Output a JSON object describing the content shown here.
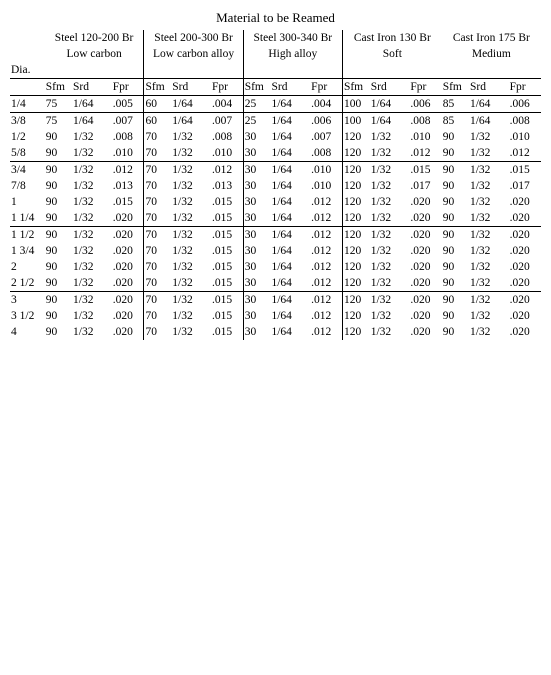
{
  "title": "Material to be Reamed",
  "groups": [
    {
      "l1": "Steel 120-200 Br",
      "l2": "Low carbon"
    },
    {
      "l1": "Steel 200-300 Br",
      "l2": "Low carbon alloy"
    },
    {
      "l1": "Steel 300-340 Br",
      "l2": "High alloy"
    },
    {
      "l1": "Cast Iron 130 Br",
      "l2": "Soft"
    },
    {
      "l1": "Cast Iron 175 Br",
      "l2": "Medium"
    }
  ],
  "colHeaders": {
    "dia": "Dia.",
    "sfm": "Sfm",
    "srd": "Srd",
    "fpr": "Fpr"
  },
  "rows": [
    {
      "dia": "1/4",
      "g1": {
        "sfm": "75",
        "srd": "1/64",
        "fpr": ".005"
      },
      "g2": {
        "sfm": "60",
        "srd": "1/64",
        "fpr": ".004"
      },
      "g3": {
        "sfm": "25",
        "srd": "1/64",
        "fpr": ".004"
      },
      "g4": {
        "sfm": "100",
        "srd": "1/64",
        "fpr": ".006"
      },
      "g5": {
        "sfm": "85",
        "srd": "1/64",
        "fpr": ".006"
      },
      "sep": true
    },
    {
      "dia": "3/8",
      "g1": {
        "sfm": "75",
        "srd": "1/64",
        "fpr": ".007"
      },
      "g2": {
        "sfm": "60",
        "srd": "1/64",
        "fpr": ".007"
      },
      "g3": {
        "sfm": "25",
        "srd": "1/64",
        "fpr": ".006"
      },
      "g4": {
        "sfm": "100",
        "srd": "1/64",
        "fpr": ".008"
      },
      "g5": {
        "sfm": "85",
        "srd": "1/64",
        "fpr": ".008"
      },
      "sep": false
    },
    {
      "dia": "1/2",
      "g1": {
        "sfm": "90",
        "srd": "1/32",
        "fpr": ".008"
      },
      "g2": {
        "sfm": "70",
        "srd": "1/32",
        "fpr": ".008"
      },
      "g3": {
        "sfm": "30",
        "srd": "1/64",
        "fpr": ".007"
      },
      "g4": {
        "sfm": "120",
        "srd": "1/32",
        "fpr": ".010"
      },
      "g5": {
        "sfm": "90",
        "srd": "1/32",
        "fpr": ".010"
      },
      "sep": false
    },
    {
      "dia": "5/8",
      "g1": {
        "sfm": "90",
        "srd": "1/32",
        "fpr": ".010"
      },
      "g2": {
        "sfm": "70",
        "srd": "1/32",
        "fpr": ".010"
      },
      "g3": {
        "sfm": "30",
        "srd": "1/64",
        "fpr": ".008"
      },
      "g4": {
        "sfm": "120",
        "srd": "1/32",
        "fpr": ".012"
      },
      "g5": {
        "sfm": "90",
        "srd": "1/32",
        "fpr": ".012"
      },
      "sep": true
    },
    {
      "dia": "3/4",
      "g1": {
        "sfm": "90",
        "srd": "1/32",
        "fpr": ".012"
      },
      "g2": {
        "sfm": "70",
        "srd": "1/32",
        "fpr": ".012"
      },
      "g3": {
        "sfm": "30",
        "srd": "1/64",
        "fpr": ".010"
      },
      "g4": {
        "sfm": "120",
        "srd": "1/32",
        "fpr": ".015"
      },
      "g5": {
        "sfm": "90",
        "srd": "1/32",
        "fpr": ".015"
      },
      "sep": false
    },
    {
      "dia": "7/8",
      "g1": {
        "sfm": "90",
        "srd": "1/32",
        "fpr": ".013"
      },
      "g2": {
        "sfm": "70",
        "srd": "1/32",
        "fpr": ".013"
      },
      "g3": {
        "sfm": "30",
        "srd": "1/64",
        "fpr": ".010"
      },
      "g4": {
        "sfm": "120",
        "srd": "1/32",
        "fpr": ".017"
      },
      "g5": {
        "sfm": "90",
        "srd": "1/32",
        "fpr": ".017"
      },
      "sep": false
    },
    {
      "dia": "1",
      "g1": {
        "sfm": "90",
        "srd": "1/32",
        "fpr": ".015"
      },
      "g2": {
        "sfm": "70",
        "srd": "1/32",
        "fpr": ".015"
      },
      "g3": {
        "sfm": "30",
        "srd": "1/64",
        "fpr": ".012"
      },
      "g4": {
        "sfm": "120",
        "srd": "1/32",
        "fpr": ".020"
      },
      "g5": {
        "sfm": "90",
        "srd": "1/32",
        "fpr": ".020"
      },
      "sep": false
    },
    {
      "dia": "1 1/4",
      "g1": {
        "sfm": "90",
        "srd": "1/32",
        "fpr": ".020"
      },
      "g2": {
        "sfm": "70",
        "srd": "1/32",
        "fpr": ".015"
      },
      "g3": {
        "sfm": "30",
        "srd": "1/64",
        "fpr": ".012"
      },
      "g4": {
        "sfm": "120",
        "srd": "1/32",
        "fpr": ".020"
      },
      "g5": {
        "sfm": "90",
        "srd": "1/32",
        "fpr": ".020"
      },
      "sep": true
    },
    {
      "dia": "1 1/2",
      "g1": {
        "sfm": "90",
        "srd": "1/32",
        "fpr": ".020"
      },
      "g2": {
        "sfm": "70",
        "srd": "1/32",
        "fpr": ".015"
      },
      "g3": {
        "sfm": "30",
        "srd": "1/64",
        "fpr": ".012"
      },
      "g4": {
        "sfm": "120",
        "srd": "1/32",
        "fpr": ".020"
      },
      "g5": {
        "sfm": "90",
        "srd": "1/32",
        "fpr": ".020"
      },
      "sep": false
    },
    {
      "dia": "1 3/4",
      "g1": {
        "sfm": "90",
        "srd": "1/32",
        "fpr": ".020"
      },
      "g2": {
        "sfm": "70",
        "srd": "1/32",
        "fpr": ".015"
      },
      "g3": {
        "sfm": "30",
        "srd": "1/64",
        "fpr": ".012"
      },
      "g4": {
        "sfm": "120",
        "srd": "1/32",
        "fpr": ".020"
      },
      "g5": {
        "sfm": "90",
        "srd": "1/32",
        "fpr": ".020"
      },
      "sep": false
    },
    {
      "dia": "2",
      "g1": {
        "sfm": "90",
        "srd": "1/32",
        "fpr": ".020"
      },
      "g2": {
        "sfm": "70",
        "srd": "1/32",
        "fpr": ".015"
      },
      "g3": {
        "sfm": "30",
        "srd": "1/64",
        "fpr": ".012"
      },
      "g4": {
        "sfm": "120",
        "srd": "1/32",
        "fpr": ".020"
      },
      "g5": {
        "sfm": "90",
        "srd": "1/32",
        "fpr": ".020"
      },
      "sep": false
    },
    {
      "dia": "2 1/2",
      "g1": {
        "sfm": "90",
        "srd": "1/32",
        "fpr": ".020"
      },
      "g2": {
        "sfm": "70",
        "srd": "1/32",
        "fpr": ".015"
      },
      "g3": {
        "sfm": "30",
        "srd": "1/64",
        "fpr": ".012"
      },
      "g4": {
        "sfm": "120",
        "srd": "1/32",
        "fpr": ".020"
      },
      "g5": {
        "sfm": "90",
        "srd": "1/32",
        "fpr": ".020"
      },
      "sep": true
    },
    {
      "dia": "3",
      "g1": {
        "sfm": "90",
        "srd": "1/32",
        "fpr": ".020"
      },
      "g2": {
        "sfm": "70",
        "srd": "1/32",
        "fpr": ".015"
      },
      "g3": {
        "sfm": "30",
        "srd": "1/64",
        "fpr": ".012"
      },
      "g4": {
        "sfm": "120",
        "srd": "1/32",
        "fpr": ".020"
      },
      "g5": {
        "sfm": "90",
        "srd": "1/32",
        "fpr": ".020"
      },
      "sep": false
    },
    {
      "dia": "3 1/2",
      "g1": {
        "sfm": "90",
        "srd": "1/32",
        "fpr": ".020"
      },
      "g2": {
        "sfm": "70",
        "srd": "1/32",
        "fpr": ".015"
      },
      "g3": {
        "sfm": "30",
        "srd": "1/64",
        "fpr": ".012"
      },
      "g4": {
        "sfm": "120",
        "srd": "1/32",
        "fpr": ".020"
      },
      "g5": {
        "sfm": "90",
        "srd": "1/32",
        "fpr": ".020"
      },
      "sep": false
    },
    {
      "dia": "4",
      "g1": {
        "sfm": "90",
        "srd": "1/32",
        "fpr": ".020"
      },
      "g2": {
        "sfm": "70",
        "srd": "1/32",
        "fpr": ".015"
      },
      "g3": {
        "sfm": "30",
        "srd": "1/64",
        "fpr": ".012"
      },
      "g4": {
        "sfm": "120",
        "srd": "1/32",
        "fpr": ".020"
      },
      "g5": {
        "sfm": "90",
        "srd": "1/32",
        "fpr": ".020"
      },
      "sep": false
    }
  ]
}
